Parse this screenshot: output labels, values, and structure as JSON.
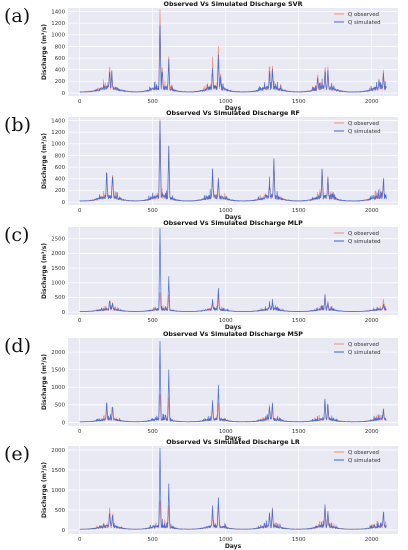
{
  "figure": {
    "colors": {
      "observed": "#f28b7a",
      "simulated": "#3b66d6",
      "plot_bg": "#e8e9f2",
      "grid": "#ffffff"
    }
  },
  "chart_data": [
    {
      "panel": "(a)",
      "type": "line",
      "title": "Observed Vs Simulated Discharge SVR",
      "xlabel": "Days",
      "ylabel": "Discharge (m³/s)",
      "xlim": [
        -80,
        2180
      ],
      "ylim": [
        -50,
        1460
      ],
      "xticks": [
        0,
        500,
        1000,
        1500,
        2000
      ],
      "yticks": [
        0,
        200,
        400,
        600,
        800,
        1000,
        1200,
        1400
      ],
      "grid": true,
      "legend": "top-right",
      "series": [
        {
          "name": "Q observed",
          "color": "#f28b7a",
          "peaks": [
            [
              205,
              500
            ],
            [
              220,
              380
            ],
            [
              550,
              1420
            ],
            [
              565,
              480
            ],
            [
              610,
              620
            ],
            [
              910,
              490
            ],
            [
              950,
              790
            ],
            [
              965,
              350
            ],
            [
              1300,
              410
            ],
            [
              1320,
              460
            ],
            [
              1630,
              300
            ],
            [
              1680,
              410
            ],
            [
              1700,
              430
            ],
            [
              2050,
              240
            ],
            [
              2080,
              380
            ]
          ]
        },
        {
          "name": "Q simulated",
          "color": "#3b66d6",
          "peaks": [
            [
              205,
              400
            ],
            [
              220,
              310
            ],
            [
              550,
              1150
            ],
            [
              565,
              400
            ],
            [
              610,
              570
            ],
            [
              910,
              410
            ],
            [
              950,
              640
            ],
            [
              965,
              300
            ],
            [
              1300,
              350
            ],
            [
              1320,
              400
            ],
            [
              1630,
              260
            ],
            [
              1680,
              360
            ],
            [
              1700,
              380
            ],
            [
              2050,
              210
            ],
            [
              2080,
              330
            ]
          ]
        }
      ]
    },
    {
      "panel": "(b)",
      "type": "line",
      "title": "Observed Vs Simulated Discharge RF",
      "xlabel": "Days",
      "ylabel": "Discharge (m³/s)",
      "xlim": [
        -80,
        2180
      ],
      "ylim": [
        -50,
        1460
      ],
      "xticks": [
        0,
        500,
        1000,
        1500,
        2000
      ],
      "yticks": [
        0,
        200,
        400,
        600,
        800,
        1000,
        1200,
        1400
      ],
      "grid": true,
      "legend": "top-right",
      "series": [
        {
          "name": "Q observed",
          "color": "#f28b7a",
          "peaks": [
            [
              185,
              560
            ],
            [
              225,
              500
            ],
            [
              550,
              1400
            ],
            [
              610,
              960
            ],
            [
              910,
              560
            ],
            [
              950,
              400
            ],
            [
              1300,
              290
            ],
            [
              1330,
              740
            ],
            [
              1660,
              560
            ],
            [
              1700,
              420
            ],
            [
              2080,
              360
            ]
          ]
        },
        {
          "name": "Q simulated",
          "color": "#3b66d6",
          "peaks": [
            [
              185,
              550
            ],
            [
              225,
              480
            ],
            [
              550,
              1390
            ],
            [
              610,
              950
            ],
            [
              910,
              550
            ],
            [
              950,
              390
            ],
            [
              1300,
              280
            ],
            [
              1330,
              720
            ],
            [
              1660,
              550
            ],
            [
              1700,
              410
            ],
            [
              2080,
              350
            ]
          ]
        }
      ]
    },
    {
      "panel": "(c)",
      "type": "line",
      "title": "Observed Vs Simulated Discharge MLP",
      "xlabel": "Days",
      "ylabel": "Discharge (m³/s)",
      "xlim": [
        -80,
        2180
      ],
      "ylim": [
        -100,
        2900
      ],
      "xticks": [
        0,
        500,
        1000,
        1500,
        2000
      ],
      "yticks": [
        0,
        500,
        1000,
        1500,
        2000,
        2500
      ],
      "grid": true,
      "legend": "top-right",
      "series": [
        {
          "name": "Q observed",
          "color": "#f28b7a",
          "peaks": [
            [
              205,
              400
            ],
            [
              225,
              300
            ],
            [
              550,
              650
            ],
            [
              610,
              560
            ],
            [
              910,
              360
            ],
            [
              950,
              500
            ],
            [
              1300,
              260
            ],
            [
              1320,
              320
            ],
            [
              1680,
              600
            ],
            [
              1700,
              350
            ],
            [
              2080,
              420
            ]
          ]
        },
        {
          "name": "Q simulated",
          "color": "#3b66d6",
          "peaks": [
            [
              205,
              420
            ],
            [
              225,
              320
            ],
            [
              550,
              2850
            ],
            [
              610,
              1200
            ],
            [
              910,
              420
            ],
            [
              950,
              800
            ],
            [
              1300,
              280
            ],
            [
              1320,
              330
            ],
            [
              1680,
              560
            ],
            [
              1700,
              300
            ],
            [
              2080,
              250
            ]
          ]
        }
      ]
    },
    {
      "panel": "(d)",
      "type": "line",
      "title": "Observed Vs Simulated Discharge M5P",
      "xlabel": "Days",
      "ylabel": "Discharge (m³/s)",
      "xlim": [
        -80,
        2180
      ],
      "ylim": [
        -100,
        2400
      ],
      "xticks": [
        0,
        500,
        1000,
        1500,
        2000
      ],
      "yticks": [
        0,
        500,
        1000,
        1500,
        2000
      ],
      "grid": true,
      "legend": "top-right",
      "series": [
        {
          "name": "Q observed",
          "color": "#f28b7a",
          "peaks": [
            [
              185,
              450
            ],
            [
              225,
              420
            ],
            [
              550,
              800
            ],
            [
              610,
              700
            ],
            [
              910,
              500
            ],
            [
              950,
              550
            ],
            [
              1300,
              350
            ],
            [
              1320,
              420
            ],
            [
              1680,
              600
            ],
            [
              1700,
              460
            ],
            [
              2080,
              300
            ]
          ]
        },
        {
          "name": "Q simulated",
          "color": "#3b66d6",
          "peaks": [
            [
              185,
              620
            ],
            [
              225,
              480
            ],
            [
              550,
              2300
            ],
            [
              610,
              1500
            ],
            [
              910,
              620
            ],
            [
              950,
              1050
            ],
            [
              1300,
              420
            ],
            [
              1320,
              550
            ],
            [
              1680,
              650
            ],
            [
              1700,
              520
            ],
            [
              2080,
              380
            ]
          ]
        }
      ]
    },
    {
      "panel": "(e)",
      "type": "line",
      "title": "Observed Vs Simulated Discharge LR",
      "xlabel": "Days",
      "ylabel": "Discharge (m³/s)",
      "xlim": [
        -80,
        2180
      ],
      "ylim": [
        -100,
        2100
      ],
      "xticks": [
        0,
        500,
        1000,
        1500,
        2000
      ],
      "yticks": [
        0,
        500,
        1000,
        1500,
        2000
      ],
      "grid": true,
      "legend": "top-right",
      "series": [
        {
          "name": "Q observed",
          "color": "#f28b7a",
          "peaks": [
            [
              205,
              550
            ],
            [
              225,
              420
            ],
            [
              550,
              700
            ],
            [
              610,
              600
            ],
            [
              910,
              500
            ],
            [
              950,
              620
            ],
            [
              1300,
              380
            ],
            [
              1320,
              450
            ],
            [
              1680,
              550
            ],
            [
              1700,
              420
            ],
            [
              2080,
              380
            ]
          ]
        },
        {
          "name": "Q simulated",
          "color": "#3b66d6",
          "peaks": [
            [
              205,
              450
            ],
            [
              225,
              380
            ],
            [
              550,
              2000
            ],
            [
              610,
              1150
            ],
            [
              910,
              600
            ],
            [
              950,
              800
            ],
            [
              1300,
              420
            ],
            [
              1320,
              520
            ],
            [
              1680,
              600
            ],
            [
              1700,
              450
            ],
            [
              2080,
              420
            ]
          ]
        }
      ]
    }
  ]
}
